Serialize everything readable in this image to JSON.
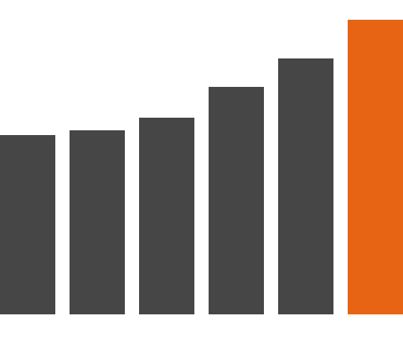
{
  "chart_data": {
    "type": "bar",
    "values": [
      227,
      233,
      249,
      288,
      324,
      373
    ],
    "colors": [
      "#464646",
      "#464646",
      "#464646",
      "#464646",
      "#464646",
      "#e66414"
    ],
    "ylim": [
      0,
      373
    ]
  }
}
